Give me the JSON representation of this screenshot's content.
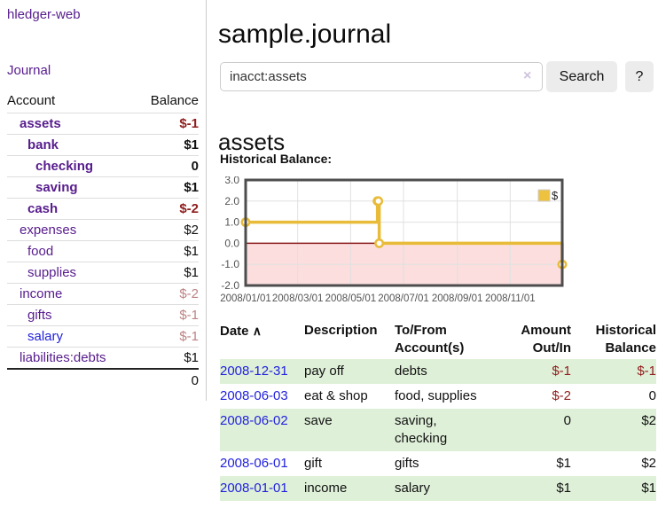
{
  "app": {
    "title": "hledger-web"
  },
  "sidebar": {
    "journal_link": "Journal",
    "table": {
      "account_header": "Account",
      "balance_header": "Balance",
      "rows": [
        {
          "name": "assets",
          "indent": 1,
          "bold": true,
          "blue": false,
          "balance": "$-1",
          "neg": "strong"
        },
        {
          "name": "bank",
          "indent": 2,
          "bold": true,
          "blue": false,
          "balance": "$1",
          "neg": "none"
        },
        {
          "name": "checking",
          "indent": 3,
          "bold": true,
          "blue": false,
          "balance": "0",
          "neg": "none"
        },
        {
          "name": "saving",
          "indent": 3,
          "bold": true,
          "blue": false,
          "balance": "$1",
          "neg": "none"
        },
        {
          "name": "cash",
          "indent": 2,
          "bold": true,
          "blue": false,
          "balance": "$-2",
          "neg": "strong"
        },
        {
          "name": "expenses",
          "indent": 1,
          "bold": false,
          "blue": false,
          "balance": "$2",
          "neg": "none"
        },
        {
          "name": "food",
          "indent": 2,
          "bold": false,
          "blue": false,
          "balance": "$1",
          "neg": "none"
        },
        {
          "name": "supplies",
          "indent": 2,
          "bold": false,
          "blue": false,
          "balance": "$1",
          "neg": "none"
        },
        {
          "name": "income",
          "indent": 1,
          "bold": false,
          "blue": false,
          "balance": "$-2",
          "neg": "muted"
        },
        {
          "name": "gifts",
          "indent": 2,
          "bold": false,
          "blue": false,
          "balance": "$-1",
          "neg": "muted"
        },
        {
          "name": "salary",
          "indent": 2,
          "bold": false,
          "blue": true,
          "balance": "$-1",
          "neg": "muted"
        },
        {
          "name": "liabilities:debts",
          "indent": 1,
          "bold": false,
          "blue": false,
          "balance": "$1",
          "neg": "none"
        }
      ],
      "total": "0"
    }
  },
  "main": {
    "title": "sample.journal",
    "search": {
      "value": "inacct:assets",
      "clear_icon": "×",
      "button_label": "Search",
      "help_label": "?"
    },
    "account_heading": "assets",
    "chart_label": "Historical Balance:"
  },
  "chart_data": {
    "type": "line",
    "title": "Historical Balance:",
    "step": true,
    "series": [
      {
        "name": "$",
        "color": "#E8BB39",
        "points": [
          [
            "2008-01-01",
            1
          ],
          [
            "2008-06-01",
            2
          ],
          [
            "2008-06-02",
            2
          ],
          [
            "2008-06-03",
            0
          ],
          [
            "2008-12-31",
            -1
          ]
        ]
      }
    ],
    "ylim": [
      -2.0,
      3.0
    ],
    "yticks": [
      3.0,
      2.0,
      1.0,
      0.0,
      -1.0,
      -2.0
    ],
    "xticks": [
      "2008/01/01",
      "2008/03/01",
      "2008/05/01",
      "2008/07/01",
      "2008/09/01",
      "2008/11/01"
    ],
    "grid": true,
    "legend_position": "top-right",
    "legend": {
      "label": "$",
      "swatch_color": "#EDC240",
      "swatch_border": "#cccccc"
    },
    "negative_region_color": "#FCDEDE",
    "zero_line_color": "#8B1A1A",
    "border_color": "#4d4d4d",
    "grid_color": "#e0e0e0",
    "tick_label_color": "#545454"
  },
  "register": {
    "headers": {
      "date": "Date",
      "sort_icon": "∧",
      "description": "Description",
      "accounts": "To/From Account(s)",
      "amount": "Amount Out/In",
      "balance": "Historical Balance"
    },
    "rows": [
      {
        "date": "2008-12-31",
        "description": "pay off",
        "accounts": "debts",
        "amount": "$-1",
        "amount_neg": true,
        "balance": "$-1",
        "balance_neg": true
      },
      {
        "date": "2008-06-03",
        "description": "eat & shop",
        "accounts": "food, supplies",
        "amount": "$-2",
        "amount_neg": true,
        "balance": "0",
        "balance_neg": false
      },
      {
        "date": "2008-06-02",
        "description": "save",
        "accounts": "saving, checking",
        "amount": "0",
        "amount_neg": false,
        "balance": "$2",
        "balance_neg": false
      },
      {
        "date": "2008-06-01",
        "description": "gift",
        "accounts": "gifts",
        "amount": "$1",
        "amount_neg": false,
        "balance": "$2",
        "balance_neg": false
      },
      {
        "date": "2008-01-01",
        "description": "income",
        "accounts": "salary",
        "amount": "$1",
        "amount_neg": false,
        "balance": "$1",
        "balance_neg": false
      }
    ]
  },
  "colors": {
    "link_purple": "#571C8D",
    "link_blue": "#2222DD",
    "neg_strong": "#8F1D1D",
    "neg_muted": "#BC8383",
    "row_green": "#DFF0D8"
  }
}
